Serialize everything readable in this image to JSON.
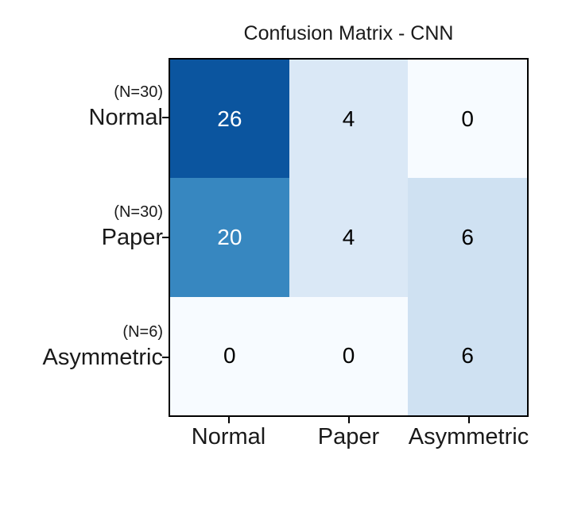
{
  "chart_data": {
    "type": "heatmap",
    "title": "Confusion Matrix - CNN",
    "x_categories": [
      "Normal",
      "Paper",
      "Asymmetric"
    ],
    "y_categories": [
      {
        "n_label": "(N=30)",
        "label": "Normal"
      },
      {
        "n_label": "(N=30)",
        "label": "Paper"
      },
      {
        "n_label": "(N=6)",
        "label": "Asymmetric"
      }
    ],
    "values": [
      [
        26,
        4,
        0
      ],
      [
        20,
        4,
        6
      ],
      [
        0,
        0,
        6
      ]
    ],
    "cell_colors": [
      [
        "#0b559f",
        "#dae8f6",
        "#f7fbff"
      ],
      [
        "#3787c0",
        "#dae8f6",
        "#cfe1f2"
      ],
      [
        "#f7fbff",
        "#f7fbff",
        "#cfe1f2"
      ]
    ],
    "text_colors": [
      [
        "#ffffff",
        "#000000",
        "#000000"
      ],
      [
        "#ffffff",
        "#000000",
        "#000000"
      ],
      [
        "#000000",
        "#000000",
        "#000000"
      ]
    ],
    "colormap": "Blues",
    "border_color": "#000000",
    "grid": false,
    "legend": "none"
  }
}
